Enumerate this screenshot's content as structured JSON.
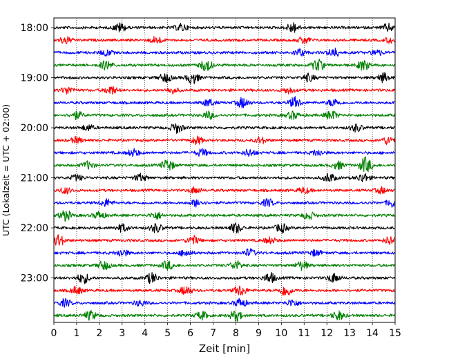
{
  "chart_data": {
    "type": "line",
    "title": "",
    "xlabel": "Zeit  [min]",
    "ylabel": "UTC (Lokalzeit = UTC + 02:00)",
    "xlim": [
      0,
      15
    ],
    "x_ticks": [
      "0",
      "1",
      "2",
      "3",
      "4",
      "5",
      "6",
      "7",
      "8",
      "9",
      "10",
      "11",
      "12",
      "13",
      "14",
      "15"
    ],
    "y_ticks": [
      "18:00",
      "19:00",
      "20:00",
      "21:00",
      "22:00",
      "23:00"
    ],
    "grid": "vertical dotted",
    "trace_interval_min": 15,
    "trace_start": "18:00",
    "trace_colors": [
      "#000000",
      "#ff0000",
      "#0000ff",
      "#008000"
    ],
    "series": [
      {
        "start": "18:00",
        "color": "#000000",
        "events": [
          {
            "x": 2.9,
            "amp": 6
          },
          {
            "x": 5.6,
            "amp": 5
          },
          {
            "x": 10.5,
            "amp": 7
          },
          {
            "x": 14.7,
            "amp": 5
          }
        ]
      },
      {
        "start": "18:15",
        "color": "#ff0000",
        "events": [
          {
            "x": 0.5,
            "amp": 5
          },
          {
            "x": 4.5,
            "amp": 5
          },
          {
            "x": 11,
            "amp": 5
          },
          {
            "x": 14.8,
            "amp": 4
          }
        ]
      },
      {
        "start": "18:30",
        "color": "#0000ff",
        "events": [
          {
            "x": 2.3,
            "amp": 4
          },
          {
            "x": 10.8,
            "amp": 5
          },
          {
            "x": 12.3,
            "amp": 6
          },
          {
            "x": 14.2,
            "amp": 4
          }
        ]
      },
      {
        "start": "18:45",
        "color": "#008000",
        "events": [
          {
            "x": 2.3,
            "amp": 6
          },
          {
            "x": 6.7,
            "amp": 8
          },
          {
            "x": 11.6,
            "amp": 8
          },
          {
            "x": 13.6,
            "amp": 7
          }
        ]
      },
      {
        "start": "19:00",
        "color": "#000000",
        "events": [
          {
            "x": 4.9,
            "amp": 6
          },
          {
            "x": 6.1,
            "amp": 8
          },
          {
            "x": 11.2,
            "amp": 5
          },
          {
            "x": 14.5,
            "amp": 6
          }
        ]
      },
      {
        "start": "19:15",
        "color": "#ff0000",
        "events": [
          {
            "x": 0.6,
            "amp": 5
          },
          {
            "x": 2.5,
            "amp": 6
          },
          {
            "x": 5.2,
            "amp": 4
          },
          {
            "x": 10.3,
            "amp": 4
          }
        ]
      },
      {
        "start": "19:30",
        "color": "#0000ff",
        "events": [
          {
            "x": 6.8,
            "amp": 5
          },
          {
            "x": 8.3,
            "amp": 7
          },
          {
            "x": 10.6,
            "amp": 7
          },
          {
            "x": 12.3,
            "amp": 5
          }
        ]
      },
      {
        "start": "19:45",
        "color": "#008000",
        "events": [
          {
            "x": 1,
            "amp": 5
          },
          {
            "x": 6.8,
            "amp": 5
          },
          {
            "x": 10.5,
            "amp": 5
          },
          {
            "x": 12.2,
            "amp": 6
          }
        ]
      },
      {
        "start": "20:00",
        "color": "#000000",
        "events": [
          {
            "x": 1.5,
            "amp": 4
          },
          {
            "x": 5.4,
            "amp": 7
          },
          {
            "x": 13.3,
            "amp": 5
          }
        ]
      },
      {
        "start": "20:15",
        "color": "#ff0000",
        "events": [
          {
            "x": 1,
            "amp": 4
          },
          {
            "x": 6.3,
            "amp": 5
          },
          {
            "x": 9.1,
            "amp": 4
          },
          {
            "x": 14.7,
            "amp": 5
          }
        ]
      },
      {
        "start": "20:30",
        "color": "#0000ff",
        "events": [
          {
            "x": 3.5,
            "amp": 5
          },
          {
            "x": 6.5,
            "amp": 5
          },
          {
            "x": 8.6,
            "amp": 5
          },
          {
            "x": 11.6,
            "amp": 4
          }
        ]
      },
      {
        "start": "20:45",
        "color": "#008000",
        "events": [
          {
            "x": 1.5,
            "amp": 5
          },
          {
            "x": 5,
            "amp": 8
          },
          {
            "x": 12.5,
            "amp": 5
          },
          {
            "x": 13.7,
            "amp": 11
          }
        ]
      },
      {
        "start": "21:00",
        "color": "#000000",
        "events": [
          {
            "x": 1,
            "amp": 4
          },
          {
            "x": 3.8,
            "amp": 5
          },
          {
            "x": 12.1,
            "amp": 6
          },
          {
            "x": 13.6,
            "amp": 6
          }
        ]
      },
      {
        "start": "21:15",
        "color": "#ff0000",
        "events": [
          {
            "x": 0.5,
            "amp": 4
          },
          {
            "x": 6.2,
            "amp": 4
          },
          {
            "x": 11,
            "amp": 4
          },
          {
            "x": 14.4,
            "amp": 4
          }
        ]
      },
      {
        "start": "21:30",
        "color": "#0000ff",
        "events": [
          {
            "x": 2.3,
            "amp": 5
          },
          {
            "x": 6.3,
            "amp": 5
          },
          {
            "x": 9.4,
            "amp": 5
          },
          {
            "x": 14.9,
            "amp": 6
          }
        ]
      },
      {
        "start": "21:45",
        "color": "#008000",
        "events": [
          {
            "x": 0.5,
            "amp": 7
          },
          {
            "x": 2,
            "amp": 5
          },
          {
            "x": 4.5,
            "amp": 5
          },
          {
            "x": 11.2,
            "amp": 5
          }
        ]
      },
      {
        "start": "22:00",
        "color": "#000000",
        "events": [
          {
            "x": 3,
            "amp": 5
          },
          {
            "x": 4.5,
            "amp": 6
          },
          {
            "x": 8,
            "amp": 7
          },
          {
            "x": 10,
            "amp": 6
          }
        ]
      },
      {
        "start": "22:15",
        "color": "#ff0000",
        "events": [
          {
            "x": 0.2,
            "amp": 8
          },
          {
            "x": 6.1,
            "amp": 6
          },
          {
            "x": 9.5,
            "amp": 4
          },
          {
            "x": 14.8,
            "amp": 6
          }
        ]
      },
      {
        "start": "22:30",
        "color": "#0000ff",
        "events": [
          {
            "x": 3,
            "amp": 5
          },
          {
            "x": 5.8,
            "amp": 5
          },
          {
            "x": 8.6,
            "amp": 5
          },
          {
            "x": 11.5,
            "amp": 4
          }
        ]
      },
      {
        "start": "22:45",
        "color": "#008000",
        "events": [
          {
            "x": 2.2,
            "amp": 6
          },
          {
            "x": 5,
            "amp": 6
          },
          {
            "x": 8,
            "amp": 6
          },
          {
            "x": 10.9,
            "amp": 6
          }
        ]
      },
      {
        "start": "23:00",
        "color": "#000000",
        "events": [
          {
            "x": 1.3,
            "amp": 7
          },
          {
            "x": 4.3,
            "amp": 7
          },
          {
            "x": 9.5,
            "amp": 7
          },
          {
            "x": 12.3,
            "amp": 6
          }
        ]
      },
      {
        "start": "23:15",
        "color": "#ff0000",
        "events": [
          {
            "x": 1,
            "amp": 5
          },
          {
            "x": 5.8,
            "amp": 6
          },
          {
            "x": 8.2,
            "amp": 7
          },
          {
            "x": 10.2,
            "amp": 8
          }
        ]
      },
      {
        "start": "23:30",
        "color": "#0000ff",
        "events": [
          {
            "x": 0.5,
            "amp": 5
          },
          {
            "x": 3.8,
            "amp": 4
          },
          {
            "x": 8.2,
            "amp": 6
          },
          {
            "x": 10.5,
            "amp": 5
          }
        ]
      },
      {
        "start": "23:45",
        "color": "#008000",
        "events": [
          {
            "x": 1.6,
            "amp": 6
          },
          {
            "x": 6.5,
            "amp": 5
          },
          {
            "x": 8,
            "amp": 7
          },
          {
            "x": 12.5,
            "amp": 6
          }
        ]
      }
    ]
  }
}
